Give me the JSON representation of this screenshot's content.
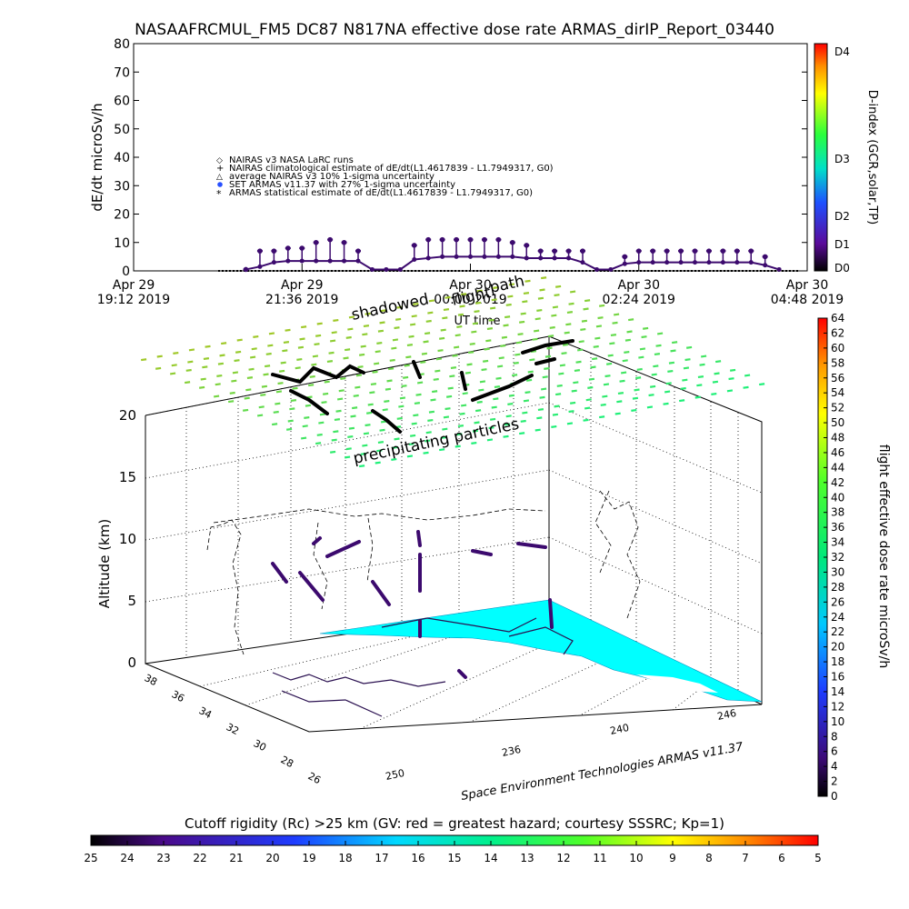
{
  "title": "NASAAFRCMUL_FM5 DC87 N817NA effective dose rate ARMAS_dirIP_Report_03440",
  "timeseries": {
    "ylabel": "dE/dt microSv/h",
    "ylim": [
      0,
      80
    ],
    "yticks": [
      "80",
      "70",
      "60",
      "50",
      "40",
      "30",
      "20",
      "10",
      "0"
    ],
    "xlabel": "UT time",
    "xticks": [
      {
        "line1": "Apr 29",
        "line2": "19:12 2019"
      },
      {
        "line1": "Apr 29",
        "line2": "21:36 2019"
      },
      {
        "line1": "Apr 30",
        "line2": "00:00 2019"
      },
      {
        "line1": "Apr 30",
        "line2": "02:24 2019"
      },
      {
        "line1": "Apr 30",
        "line2": "04:48 2019"
      }
    ],
    "legend": [
      "NAIRAS v3 NASA LaRC runs",
      "NAIRAS climatological estimate of dE/dt(L1.4617839 - L1.7949317, G0)",
      "average NAIRAS v3 10% 1-sigma uncertainty",
      "SET ARMAS v11.37 with 27% 1-sigma uncertainty",
      "ARMAS statistical estimate of dE/dt(L1.4617839 - L1.7949317, G0)"
    ],
    "dindex_label": "D-index (GCR,solar,TP)",
    "dindex_ticks": [
      "D4",
      "D3",
      "D2",
      "D1",
      "D0"
    ]
  },
  "chart_data": {
    "type": "line",
    "title": "NASAAFRCMUL_FM5 DC87 N817NA effective dose rate ARMAS_dirIP_Report_03440",
    "xlabel": "UT time",
    "ylabel": "dE/dt microSv/h",
    "ylim": [
      0,
      80
    ],
    "x": [
      "20:48",
      "21:00",
      "21:12",
      "21:24",
      "21:36",
      "21:48",
      "22:00",
      "22:12",
      "22:24",
      "22:36",
      "22:48",
      "23:00",
      "23:12",
      "23:24",
      "23:36",
      "23:48",
      "00:00",
      "00:12",
      "00:24",
      "00:36",
      "00:48",
      "01:00",
      "01:12",
      "01:24",
      "01:36",
      "01:48",
      "02:00",
      "02:12",
      "02:24",
      "02:36",
      "02:48",
      "03:00",
      "03:12",
      "03:24",
      "03:36",
      "03:48",
      "04:00",
      "04:12",
      "04:24"
    ],
    "series": [
      {
        "values": [
          0.5,
          1.5,
          3,
          3.5,
          3.5,
          3.5,
          3.5,
          3.5,
          3.5,
          0.5,
          0.5,
          0.5,
          4,
          4.5,
          5,
          5,
          5,
          5,
          5,
          5,
          4.5,
          4.5,
          4.5,
          4.5,
          3,
          0.5,
          0.5,
          2.5,
          3,
          3,
          3,
          3,
          3,
          3,
          3,
          3,
          3,
          2,
          0.5
        ]
      },
      {
        "values": [
          0.5,
          7,
          7,
          8,
          8,
          10,
          11,
          10,
          7,
          null,
          null,
          null,
          9,
          11,
          11,
          11,
          11,
          11,
          11,
          10,
          9,
          7,
          7,
          7,
          7,
          null,
          null,
          5,
          7,
          7,
          7,
          7,
          7,
          7,
          7,
          7,
          7,
          5,
          null
        ]
      }
    ]
  },
  "surface": {
    "labels": {
      "shadowed": "shadowed",
      "path": "path",
      "flight": "flight",
      "precipitating": "precipitating particles",
      "credit": "Space Environment Technologies ARMAS v11.37"
    },
    "zlabel": "Altitude (km)",
    "zticks": [
      "20",
      "15",
      "10",
      "5",
      "0"
    ],
    "latticks": [
      "38",
      "36",
      "34",
      "32",
      "30",
      "28",
      "26"
    ],
    "lonticks": [
      "250",
      "236",
      "240",
      "246"
    ]
  },
  "dose_bar": {
    "label": "flight effective dose rate microSv/h",
    "ticks": [
      "64",
      "62",
      "60",
      "58",
      "56",
      "54",
      "52",
      "50",
      "48",
      "46",
      "44",
      "42",
      "40",
      "38",
      "36",
      "34",
      "32",
      "30",
      "28",
      "26",
      "24",
      "22",
      "20",
      "18",
      "16",
      "14",
      "12",
      "10",
      "8",
      "6",
      "4",
      "2",
      "0"
    ]
  },
  "cutoff_bar": {
    "label": "Cutoff rigidity (Rc) >25 km (GV: red = greatest hazard; courtesy SSSRC; Kp=1)",
    "ticks": [
      "25",
      "24",
      "23",
      "22",
      "21",
      "20",
      "19",
      "18",
      "17",
      "16",
      "15",
      "14",
      "13",
      "12",
      "11",
      "10",
      "9",
      "8",
      "7",
      "6",
      "5"
    ]
  },
  "colors": {
    "cutoff_fill": "#00ffff",
    "precip_green": "#3cf06a",
    "data_purple": "#3c0a6e"
  }
}
